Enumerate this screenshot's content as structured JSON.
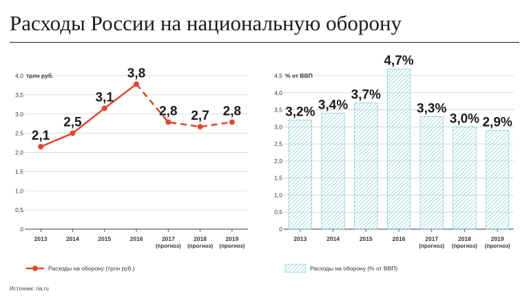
{
  "title": "Расходы России на национальную оборону",
  "source": "Источник: ria.ru",
  "colors": {
    "line": "#e0492c",
    "bar_stroke": "#62c3c8",
    "bar_hatch": "#8fd3d6"
  },
  "chart_data": [
    {
      "type": "line",
      "unit_label": "трлн руб.",
      "categories": [
        {
          "year": "2013",
          "note": ""
        },
        {
          "year": "2014",
          "note": ""
        },
        {
          "year": "2015",
          "note": ""
        },
        {
          "year": "2016",
          "note": ""
        },
        {
          "year": "2017",
          "note": "(прогноз)"
        },
        {
          "year": "2018",
          "note": "(прогноз)"
        },
        {
          "year": "2019",
          "note": "(прогноз)"
        }
      ],
      "values": [
        2.15,
        2.5,
        3.15,
        3.78,
        2.79,
        2.67,
        2.79
      ],
      "labels": [
        "2,1",
        "2,5",
        "3,1",
        "3,8",
        "2,8",
        "2,7",
        "2,8"
      ],
      "solid_until_index": 3,
      "yticks": [
        "0",
        "0,5",
        "1,0",
        "1,5",
        "2,0",
        "2,5",
        "3,0",
        "3,5",
        "4,0"
      ],
      "ylim": [
        0,
        4
      ],
      "legend": "Расходы на оборону (трлн руб.)"
    },
    {
      "type": "bar",
      "unit_label": "% от ВВП",
      "categories": [
        {
          "year": "2013",
          "note": ""
        },
        {
          "year": "2014",
          "note": ""
        },
        {
          "year": "2015",
          "note": ""
        },
        {
          "year": "2016",
          "note": ""
        },
        {
          "year": "2017",
          "note": "(прогноз)"
        },
        {
          "year": "2018",
          "note": "(прогноз)"
        },
        {
          "year": "2019",
          "note": "(прогноз)"
        }
      ],
      "values": [
        3.2,
        3.4,
        3.7,
        4.7,
        3.3,
        3.0,
        2.9
      ],
      "labels": [
        "3,2%",
        "3,4%",
        "3,7%",
        "4,7%",
        "3,3%",
        "3,0%",
        "2,9%"
      ],
      "yticks": [
        "0",
        "0,5",
        "1,0",
        "1,5",
        "2,0",
        "2,5",
        "3,0",
        "3,5",
        "4,0",
        "4,5"
      ],
      "ylim": [
        0,
        4.5
      ],
      "legend": "Расходы на оборону (% от ВВП)"
    }
  ]
}
